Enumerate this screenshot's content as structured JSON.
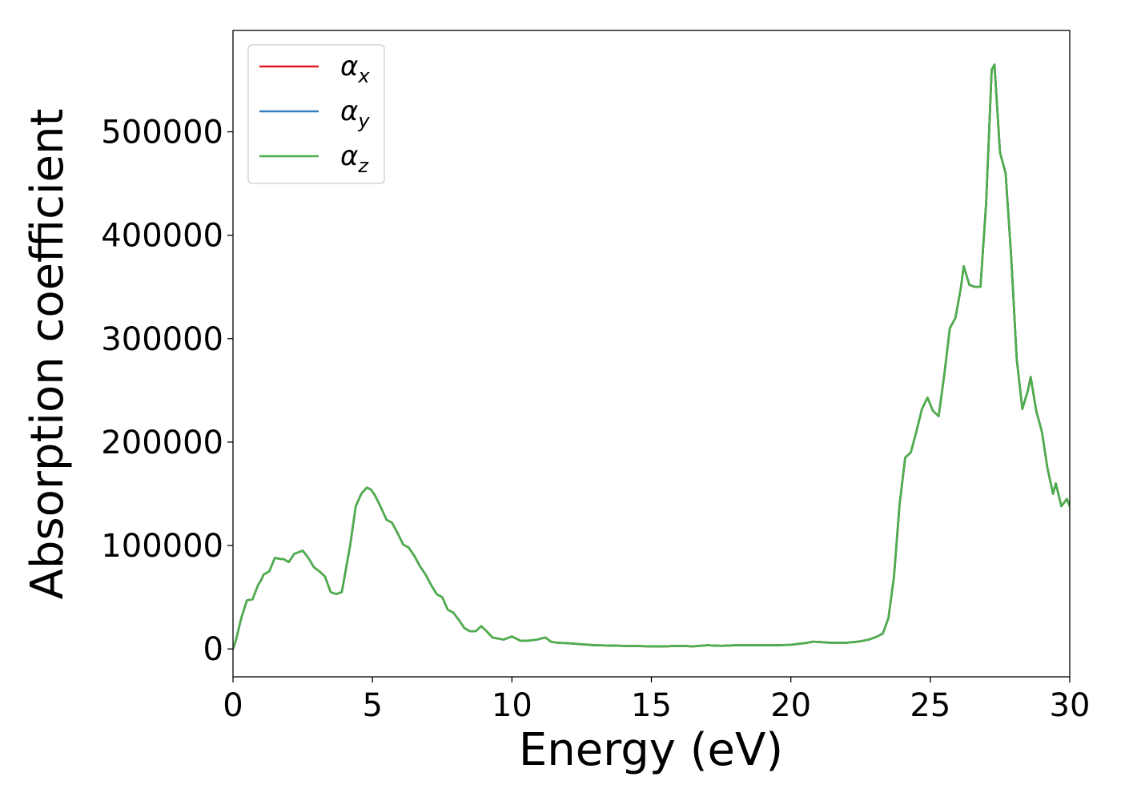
{
  "chart_data": {
    "type": "line",
    "xlabel": "Energy (eV)",
    "ylabel": "Absorption coefficient",
    "xlim": [
      0,
      30
    ],
    "ylim": [
      -27000,
      598000
    ],
    "xticks": [
      "0",
      "5",
      "10",
      "15",
      "20",
      "25",
      "30"
    ],
    "yticks": [
      "0",
      "100000",
      "200000",
      "300000",
      "400000",
      "500000"
    ],
    "grid": false,
    "legend_position": "top-left",
    "colors": {
      "alpha_x": "#e41a1c",
      "alpha_y": "#377eb8",
      "alpha_z": "#4daf4a"
    },
    "legend": [
      {
        "key": "alpha_x",
        "symbol": "α",
        "sub": "x"
      },
      {
        "key": "alpha_y",
        "symbol": "α",
        "sub": "y"
      },
      {
        "key": "alpha_z",
        "symbol": "α",
        "sub": "z"
      }
    ],
    "x": [
      0,
      0.1,
      0.3,
      0.5,
      0.7,
      0.9,
      1.0,
      1.1,
      1.3,
      1.5,
      1.7,
      1.8,
      2.0,
      2.2,
      2.4,
      2.5,
      2.7,
      2.9,
      3.1,
      3.3,
      3.5,
      3.7,
      3.9,
      4.2,
      4.4,
      4.6,
      4.8,
      4.95,
      5.1,
      5.3,
      5.5,
      5.7,
      5.9,
      6.1,
      6.3,
      6.5,
      6.7,
      6.9,
      7.1,
      7.3,
      7.5,
      7.7,
      7.9,
      8.1,
      8.3,
      8.5,
      8.7,
      8.9,
      9.1,
      9.3,
      9.5,
      9.7,
      10.0,
      10.3,
      10.6,
      10.9,
      11.2,
      11.4,
      11.6,
      12.0,
      12.5,
      13.0,
      14.0,
      15.0,
      15.5,
      16.0,
      16.5,
      17.0,
      17.5,
      18.0,
      18.5,
      19.0,
      19.5,
      20.0,
      20.3,
      20.6,
      20.8,
      21.1,
      21.4,
      21.7,
      22.0,
      22.4,
      22.8,
      23.1,
      23.3,
      23.5,
      23.7,
      23.9,
      24.1,
      24.3,
      24.5,
      24.7,
      24.9,
      25.1,
      25.3,
      25.5,
      25.7,
      25.9,
      26.1,
      26.2,
      26.4,
      26.6,
      26.8,
      27.0,
      27.2,
      27.3,
      27.5,
      27.7,
      27.9,
      28.1,
      28.3,
      28.5,
      28.6,
      28.8,
      29.0,
      29.2,
      29.4,
      29.5,
      29.7,
      29.9,
      30.0
    ],
    "series": [
      {
        "name": "α_x",
        "values": [
          0,
          8000,
          30000,
          47000,
          48000,
          62000,
          66000,
          72000,
          75000,
          88000,
          87000,
          87000,
          84000,
          92000,
          94000,
          95000,
          88000,
          79000,
          75000,
          70000,
          55000,
          53000,
          55000,
          100000,
          138000,
          150000,
          156000,
          154000,
          148000,
          137000,
          125000,
          122000,
          112000,
          101000,
          98000,
          90000,
          80000,
          72000,
          62000,
          53000,
          50000,
          38000,
          35000,
          28000,
          20000,
          17000,
          17000,
          22000,
          17000,
          11000,
          10000,
          9000,
          12000,
          8000,
          8000,
          9000,
          11000,
          7000,
          6000,
          5500,
          4500,
          3500,
          3000,
          2500,
          2500,
          3000,
          2500,
          3500,
          3000,
          3500,
          3500,
          3500,
          3500,
          4000,
          5000,
          6000,
          7000,
          6500,
          6000,
          6000,
          6000,
          7000,
          9000,
          12000,
          15000,
          30000,
          70000,
          140000,
          185000,
          190000,
          210000,
          232000,
          243000,
          230000,
          225000,
          265000,
          310000,
          320000,
          350000,
          370000,
          352000,
          350000,
          350000,
          430000,
          560000,
          565000,
          480000,
          460000,
          380000,
          280000,
          232000,
          250000,
          263000,
          230000,
          210000,
          175000,
          150000,
          160000,
          138000,
          145000,
          138000
        ]
      },
      {
        "name": "α_y",
        "values": [
          0,
          8000,
          30000,
          47000,
          48000,
          62000,
          66000,
          72000,
          75000,
          88000,
          87000,
          87000,
          84000,
          92000,
          94000,
          95000,
          88000,
          79000,
          75000,
          70000,
          55000,
          53000,
          55000,
          100000,
          138000,
          150000,
          156000,
          154000,
          148000,
          137000,
          125000,
          122000,
          112000,
          101000,
          98000,
          90000,
          80000,
          72000,
          62000,
          53000,
          50000,
          38000,
          35000,
          28000,
          20000,
          17000,
          17000,
          22000,
          17000,
          11000,
          10000,
          9000,
          12000,
          8000,
          8000,
          9000,
          11000,
          7000,
          6000,
          5500,
          4500,
          3500,
          3000,
          2500,
          2500,
          3000,
          2500,
          3500,
          3000,
          3500,
          3500,
          3500,
          3500,
          4000,
          5000,
          6000,
          7000,
          6500,
          6000,
          6000,
          6000,
          7000,
          9000,
          12000,
          15000,
          30000,
          70000,
          140000,
          185000,
          190000,
          210000,
          232000,
          243000,
          230000,
          225000,
          265000,
          310000,
          320000,
          350000,
          370000,
          352000,
          350000,
          350000,
          430000,
          560000,
          565000,
          480000,
          460000,
          380000,
          280000,
          232000,
          250000,
          263000,
          230000,
          210000,
          175000,
          150000,
          160000,
          138000,
          145000,
          138000
        ]
      },
      {
        "name": "α_z",
        "values": [
          0,
          8000,
          30000,
          47000,
          48000,
          62000,
          66000,
          72000,
          75000,
          88000,
          87000,
          87000,
          84000,
          92000,
          94000,
          95000,
          88000,
          79000,
          75000,
          70000,
          55000,
          53000,
          55000,
          100000,
          138000,
          150000,
          156000,
          154000,
          148000,
          137000,
          125000,
          122000,
          112000,
          101000,
          98000,
          90000,
          80000,
          72000,
          62000,
          53000,
          50000,
          38000,
          35000,
          28000,
          20000,
          17000,
          17000,
          22000,
          17000,
          11000,
          10000,
          9000,
          12000,
          8000,
          8000,
          9000,
          11000,
          7000,
          6000,
          5500,
          4500,
          3500,
          3000,
          2500,
          2500,
          3000,
          2500,
          3500,
          3000,
          3500,
          3500,
          3500,
          3500,
          4000,
          5000,
          6000,
          7000,
          6500,
          6000,
          6000,
          6000,
          7000,
          9000,
          12000,
          15000,
          30000,
          70000,
          140000,
          185000,
          190000,
          210000,
          232000,
          243000,
          230000,
          225000,
          265000,
          310000,
          320000,
          350000,
          370000,
          352000,
          350000,
          350000,
          430000,
          560000,
          565000,
          480000,
          460000,
          380000,
          280000,
          232000,
          250000,
          263000,
          230000,
          210000,
          175000,
          150000,
          160000,
          138000,
          145000,
          138000
        ]
      }
    ]
  }
}
